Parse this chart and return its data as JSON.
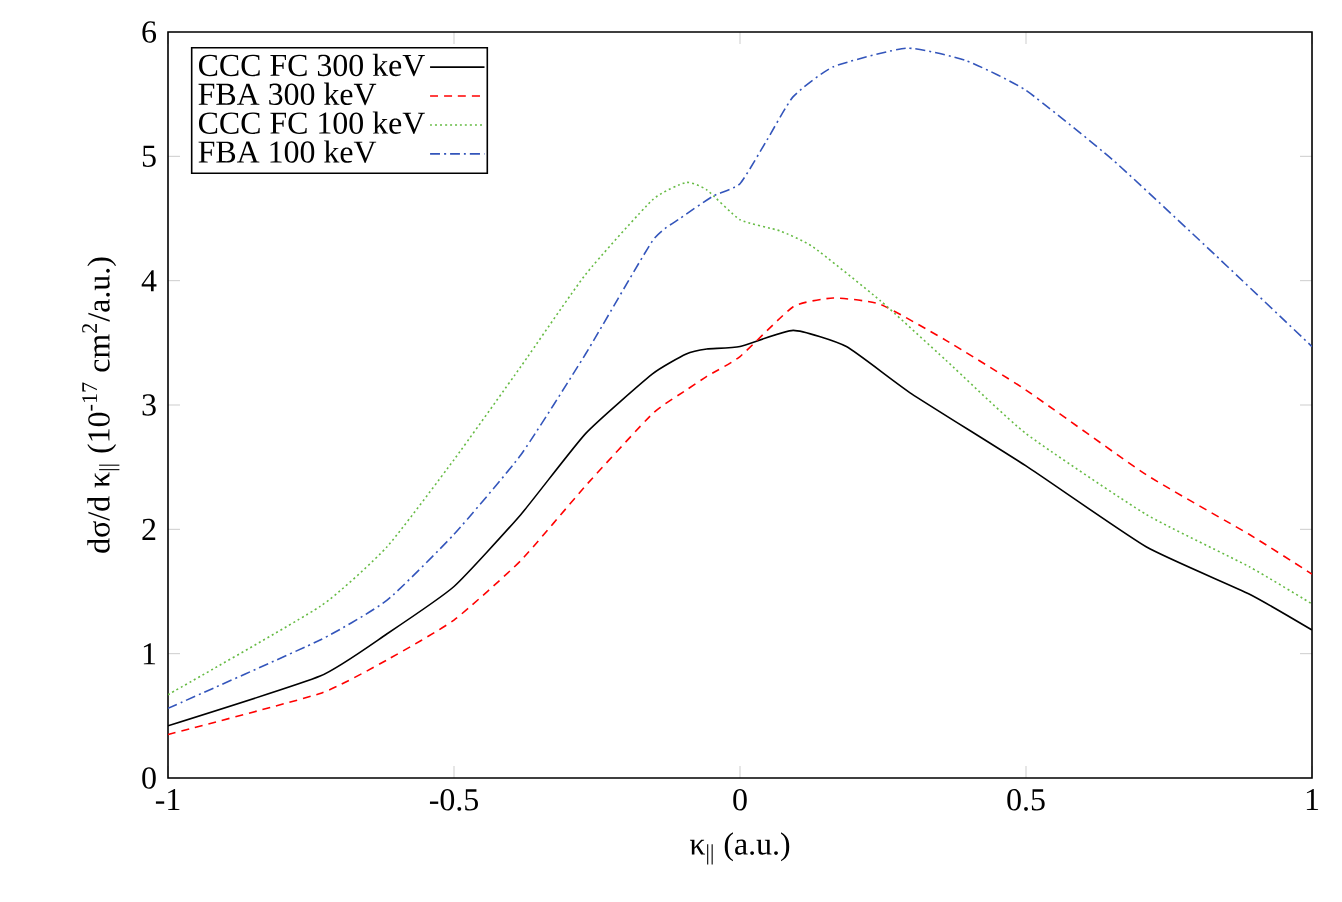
{
  "chart_data": {
    "type": "line",
    "xlabel": "κ$_{||}$ (a.u.)",
    "ylabel": "dσ/d κ$_{||}$ (10$^{-17}$ cm$^{2}$/a.u.)",
    "xlim": [
      -1,
      1
    ],
    "ylim": [
      0,
      6
    ],
    "xticks": [
      -1,
      -0.5,
      0,
      0.5,
      1
    ],
    "yticks": [
      0,
      1,
      2,
      3,
      4,
      5,
      6
    ],
    "legend": "top left",
    "grid": false,
    "marker": "none",
    "series": [
      {
        "name": "CCC FC 300 keV",
        "color": "#000000",
        "line_style": "solid",
        "x": [
          -1,
          -0.734,
          -0.617,
          -0.5,
          -0.383,
          -0.27,
          -0.153,
          -0.094,
          -0.058,
          0,
          0.093,
          0.186,
          0.3,
          0.5,
          0.71,
          0.89,
          1
        ],
        "values": [
          0.42,
          0.82,
          1.16,
          1.54,
          2.12,
          2.77,
          3.25,
          3.41,
          3.45,
          3.47,
          3.6,
          3.47,
          3.09,
          2.51,
          1.86,
          1.48,
          1.19
        ]
      },
      {
        "name": "FBA 300 keV",
        "color": "#ff0000",
        "line_style": "dashed",
        "x": [
          -1,
          -0.734,
          -0.617,
          -0.5,
          -0.383,
          -0.27,
          -0.153,
          -0.094,
          -0.058,
          0,
          0.093,
          0.163,
          0.245,
          0.36,
          0.5,
          0.71,
          0.89,
          1
        ],
        "values": [
          0.35,
          0.68,
          0.95,
          1.27,
          1.75,
          2.35,
          2.93,
          3.12,
          3.23,
          3.39,
          3.79,
          3.86,
          3.81,
          3.52,
          3.12,
          2.44,
          1.96,
          1.64
        ]
      },
      {
        "name": "CCC FC 100 keV",
        "color": "#66bb44",
        "line_style": "dotted",
        "x": [
          -1,
          -0.734,
          -0.617,
          -0.5,
          -0.383,
          -0.27,
          -0.153,
          -0.094,
          -0.058,
          0,
          0.07,
          0.128,
          0.245,
          0.36,
          0.5,
          0.71,
          0.89,
          1
        ],
        "values": [
          0.67,
          1.38,
          1.86,
          2.56,
          3.31,
          4.05,
          4.65,
          4.79,
          4.73,
          4.49,
          4.4,
          4.27,
          3.84,
          3.36,
          2.77,
          2.12,
          1.7,
          1.4
        ]
      },
      {
        "name": "FBA 100 keV",
        "color": "#3355bb",
        "line_style": "dashdot",
        "x": [
          -1,
          -0.734,
          -0.617,
          -0.5,
          -0.383,
          -0.27,
          -0.153,
          -0.105,
          -0.047,
          0,
          0.047,
          0.093,
          0.163,
          0.291,
          0.395,
          0.5,
          0.652,
          0.83,
          1
        ],
        "values": [
          0.56,
          1.11,
          1.43,
          1.96,
          2.6,
          3.41,
          4.32,
          4.5,
          4.68,
          4.78,
          5.13,
          5.48,
          5.72,
          5.87,
          5.77,
          5.53,
          4.97,
          4.21,
          3.47
        ]
      }
    ]
  }
}
